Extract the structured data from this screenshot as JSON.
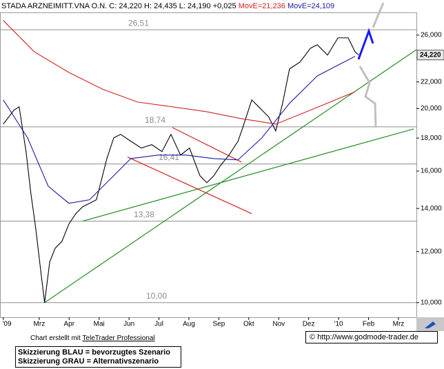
{
  "chart_data": {
    "type": "line",
    "title": "STADA ARZNEIMITT.VNA O.N. C: 24,220 H: 24,435 L: 24,190 +0,025",
    "log_scale": true,
    "grid": false,
    "xlim": [
      0.69,
      14.6
    ],
    "xticks": [
      {
        "value": 0.8,
        "label": "'09"
      },
      {
        "value": 2,
        "label": "Mrz"
      },
      {
        "value": 3,
        "label": "Apr"
      },
      {
        "value": 4,
        "label": "Mai"
      },
      {
        "value": 5,
        "label": "Jun"
      },
      {
        "value": 6,
        "label": "Jul"
      },
      {
        "value": 7,
        "label": "Aug"
      },
      {
        "value": 8,
        "label": "Sep"
      },
      {
        "value": 9,
        "label": "Okt"
      },
      {
        "value": 10,
        "label": "Nov"
      },
      {
        "value": 11,
        "label": "Dez"
      },
      {
        "value": 12,
        "label": "'10"
      },
      {
        "value": 13,
        "label": "Feb"
      },
      {
        "value": 14,
        "label": "Mrz"
      }
    ],
    "ylim": [
      9.49,
      28.2
    ],
    "yticks": [
      {
        "value": 10,
        "label": "10,000"
      },
      {
        "value": 12,
        "label": "12,000"
      },
      {
        "value": 14,
        "label": "14,000"
      },
      {
        "value": 16,
        "label": "16,000"
      },
      {
        "value": 18,
        "label": "18,000"
      },
      {
        "value": 20,
        "label": "20,000"
      },
      {
        "value": 22,
        "label": "22,000"
      },
      {
        "value": 24,
        "label": "24,000"
      },
      {
        "value": 26,
        "label": "26,000"
      }
    ],
    "last_price": {
      "value": 24.22,
      "label": "24,220"
    },
    "series": [
      {
        "color": "#000000",
        "x": [
          0.8,
          1.15,
          1.33,
          1.56,
          1.72,
          1.88,
          2.07,
          2.18,
          2.35,
          2.53,
          2.76,
          2.99,
          3.22,
          3.45,
          3.91,
          4.26,
          4.49,
          4.72,
          5.06,
          5.41,
          5.76,
          6.1,
          6.4,
          6.72,
          7.02,
          7.37,
          7.6,
          7.83,
          8.06,
          8.34,
          8.64,
          8.8,
          9.1,
          9.33,
          9.67,
          9.9,
          10.13,
          10.36,
          10.71,
          11.06,
          11.29,
          11.63,
          11.98,
          12.32,
          12.55,
          12.67
        ],
        "values": [
          18.92,
          19.88,
          20.13,
          17.15,
          14.79,
          13.08,
          11.01,
          10.0,
          11.56,
          12.14,
          12.45,
          13.24,
          13.74,
          14.08,
          14.44,
          16.73,
          18.02,
          18.24,
          17.8,
          17.37,
          17.58,
          17.15,
          18.24,
          16.94,
          17.37,
          15.73,
          15.35,
          15.73,
          16.33,
          16.94,
          17.8,
          18.69,
          20.63,
          20.13,
          19.4,
          18.47,
          20.38,
          23.04,
          23.62,
          24.81,
          25.12,
          24.21,
          25.75,
          25.75,
          24.5,
          24.22
        ]
      },
      {
        "name": "MovE=21,236",
        "color": "#d42020",
        "x": [
          0.8,
          1.83,
          2.99,
          4.14,
          5.29,
          6.44,
          7.59,
          8.74,
          9.9,
          11.05,
          12.55
        ],
        "values": [
          27.4,
          24.51,
          22.76,
          21.41,
          20.47,
          20.13,
          19.78,
          19.3,
          18.92,
          19.88,
          21.24
        ]
      },
      {
        "name": "MovE=24,109",
        "color": "#1a1aa8",
        "x": [
          0.8,
          1.61,
          2.3,
          2.99,
          3.68,
          4.37,
          5.06,
          5.98,
          6.9,
          7.83,
          8.64,
          9.44,
          10.36,
          11.29,
          12.55
        ],
        "values": [
          20.63,
          18.02,
          15.16,
          14.26,
          14.44,
          15.54,
          16.73,
          16.94,
          16.94,
          16.73,
          16.65,
          18.02,
          20.38,
          22.48,
          24.11
        ]
      }
    ],
    "levels": [
      {
        "value": 26.51,
        "label": "26,51"
      },
      {
        "value": 18.74,
        "label": "18,74"
      },
      {
        "value": 16.41,
        "label": "16,41"
      },
      {
        "value": 13.38,
        "label": "13,38"
      },
      {
        "value": 10.0,
        "label": "10,00"
      }
    ],
    "trendlines": [
      {
        "color": "#1e8c1e",
        "x": [
          2.18,
          14.6
        ],
        "values": [
          10.0,
          24.69
        ]
      },
      {
        "color": "#1e8c1e",
        "x": [
          3.45,
          14.51
        ],
        "values": [
          13.38,
          18.6
        ]
      },
      {
        "color": "#d42020",
        "x": [
          6.45,
          8.75
        ],
        "values": [
          18.69,
          16.53
        ]
      },
      {
        "color": "#d42020",
        "x": [
          4.95,
          9.1
        ],
        "values": [
          16.82,
          13.74
        ]
      }
    ]
  },
  "footer": {
    "credit": "Chart erstellt mit",
    "credit_link": "TeleTrader Professional",
    "legend_lines": [
      "Skizzierung BLAU = bevorzugtes Szenario",
      "Skizzierung GRAU = Alternativszenario"
    ],
    "copyright": "© http://www.godmode-trader.de"
  }
}
